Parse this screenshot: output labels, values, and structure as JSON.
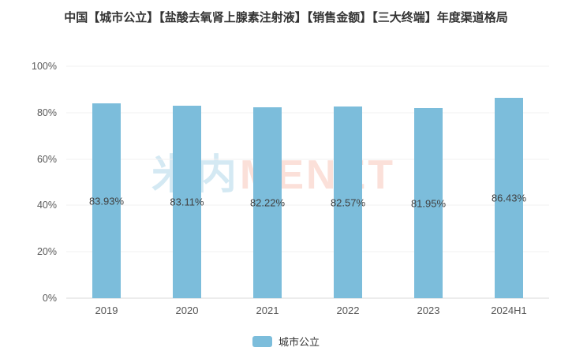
{
  "title": "中国【城市公立】【盐酸去氧肾上腺素注射液】【销售金额】【三大终端】年度渠道格局",
  "watermark": {
    "cn": "米内",
    "en": "MENET"
  },
  "legend": {
    "items": [
      {
        "label": "城市公立",
        "color": "#7CBDDB"
      }
    ]
  },
  "chart_data": {
    "type": "bar",
    "title": "中国【城市公立】【盐酸去氧肾上腺素注射液】【销售金额】【三大终端】年度渠道格局",
    "categories": [
      "2019",
      "2020",
      "2021",
      "2022",
      "2023",
      "2024H1"
    ],
    "series": [
      {
        "name": "城市公立",
        "color": "#7CBDDB",
        "values": [
          83.93,
          83.11,
          82.22,
          82.57,
          81.95,
          86.43
        ],
        "labels": [
          "83.93%",
          "83.11%",
          "82.22%",
          "82.57%",
          "81.95%",
          "86.43%"
        ]
      }
    ],
    "xlabel": "",
    "ylabel": "",
    "ylim": [
      0,
      100
    ],
    "y_ticks": [
      {
        "value": 0,
        "label": "0%"
      },
      {
        "value": 20,
        "label": "20%"
      },
      {
        "value": 40,
        "label": "40%"
      },
      {
        "value": 60,
        "label": "60%"
      },
      {
        "value": 80,
        "label": "80%"
      },
      {
        "value": 100,
        "label": "100%"
      }
    ],
    "grid": true,
    "legend_position": "bottom",
    "value_label_position": "inside-middle"
  },
  "colors": {
    "bar": "#7CBDDB",
    "title_text": "#333333",
    "axis_text": "#595959",
    "value_label_text": "#404040",
    "gridline": "#F0F0F0",
    "baseline": "#D9D9D9",
    "watermark_cn": "rgba(120,186,218,0.32)",
    "watermark_en": "rgba(243,152,128,0.30)"
  }
}
